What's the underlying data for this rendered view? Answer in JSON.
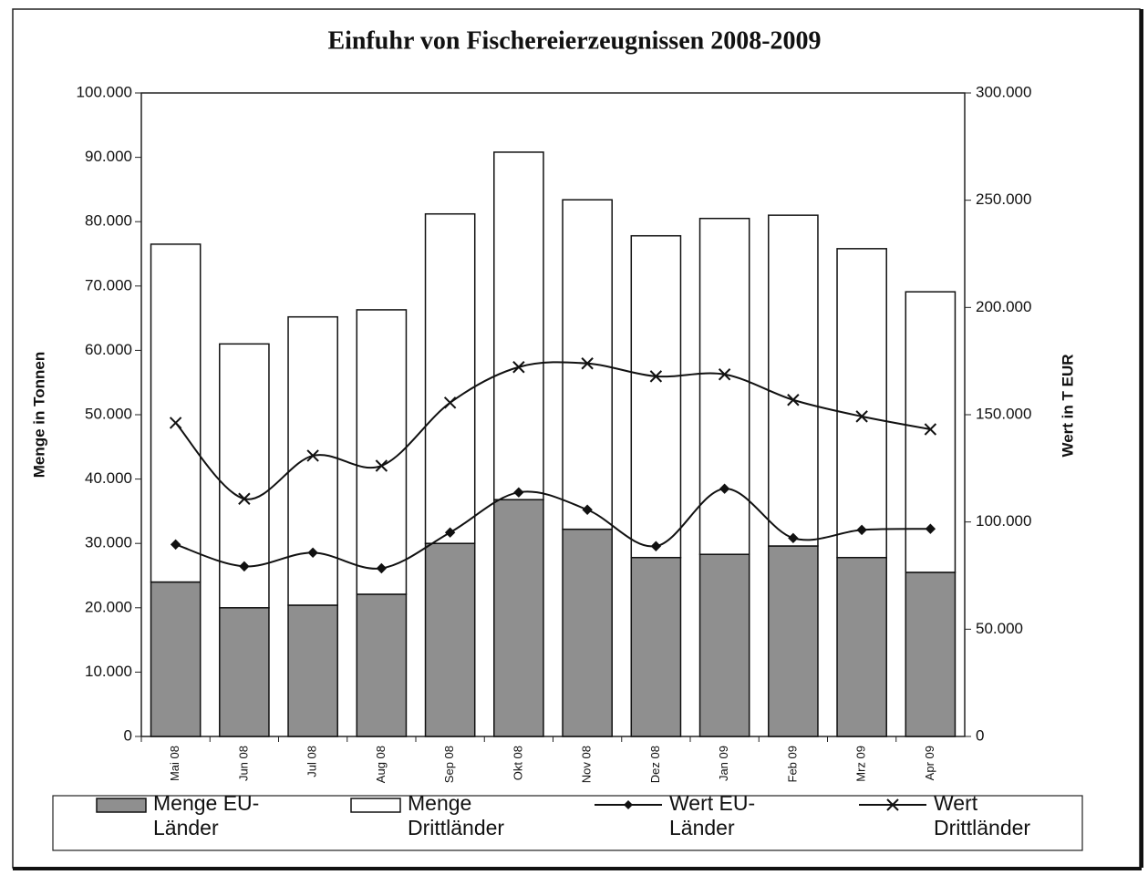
{
  "chart_data": {
    "type": "bar",
    "title": "Einfuhr von Fischereierzeugnissen 2008-2009",
    "y_label": "Menge in Tonnen",
    "y2_label": "Wert in T EUR",
    "stacked": true,
    "categories": [
      "Mai 08",
      "Jun 08",
      "Jul 08",
      "Aug 08",
      "Sep 08",
      "Okt 08",
      "Nov 08",
      "Dez 08",
      "Jan 09",
      "Feb 09",
      "Mrz 09",
      "Apr 09"
    ],
    "series": [
      {
        "name": "Menge EU-Länder",
        "type": "bar",
        "color": "#8f8f8f",
        "values": [
          24000,
          20000,
          20400,
          22100,
          30000,
          36800,
          32200,
          27800,
          28300,
          29600,
          27800,
          25500
        ]
      },
      {
        "name": "Menge Drittländer",
        "type": "bar",
        "color": "#ffffff",
        "values": [
          52500,
          41000,
          44800,
          44200,
          51200,
          54000,
          51200,
          50000,
          52200,
          51400,
          48000,
          43600
        ]
      },
      {
        "name": "Wert EU-Länder",
        "type": "line",
        "axis": "y2",
        "marker": "diamond",
        "color": "#111111",
        "values": [
          89500,
          79300,
          85700,
          78400,
          95100,
          113800,
          105700,
          88700,
          115500,
          92500,
          96300,
          96800
        ]
      },
      {
        "name": "Wert Drittländer",
        "type": "line",
        "axis": "y2",
        "marker": "x",
        "color": "#111111",
        "values": [
          146200,
          110800,
          130900,
          126200,
          155600,
          172200,
          173900,
          167900,
          168800,
          156900,
          149200,
          143200
        ]
      }
    ],
    "smooth": true,
    "ylim": [
      0,
      100000
    ],
    "yticks": [
      0,
      {
        "value": 10000,
        "label": "10.000"
      },
      {
        "value": 20000,
        "label": "20.000"
      },
      {
        "value": 30000,
        "label": "30.000"
      },
      {
        "value": 40000,
        "label": "40.000"
      },
      {
        "value": 50000,
        "label": "50.000"
      },
      {
        "value": 60000,
        "label": "60.000"
      },
      {
        "value": 70000,
        "label": "70.000"
      },
      {
        "value": 80000,
        "label": "80.000"
      },
      {
        "value": 90000,
        "label": "90.000"
      },
      {
        "value": 100000,
        "label": "100.000"
      }
    ],
    "y2lim": [
      0,
      300000
    ],
    "y2ticks": [
      0,
      {
        "value": 50000,
        "label": "50.000"
      },
      {
        "value": 100000,
        "label": "100.000"
      },
      {
        "value": 150000,
        "label": "150.000"
      },
      {
        "value": 200000,
        "label": "200.000"
      },
      {
        "value": 250000,
        "label": "250.000"
      },
      {
        "value": 300000,
        "label": "300.000"
      }
    ],
    "grid": false,
    "legend": "bottom"
  }
}
